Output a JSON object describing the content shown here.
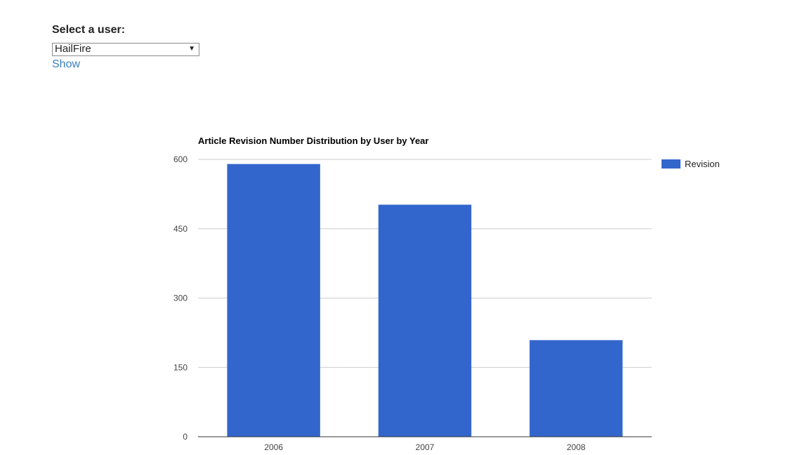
{
  "form": {
    "label": "Select a user:",
    "selected_user": "HailFire",
    "show_link": "Show",
    "arrow_icon": "▼"
  },
  "chart_data": {
    "type": "bar",
    "title": "Article Revision Number Distribution by User by Year",
    "categories": [
      "2006",
      "2007",
      "2008"
    ],
    "series": [
      {
        "name": "Revision",
        "values": [
          590,
          502,
          209
        ],
        "color": "#3366cc"
      }
    ],
    "ylim": [
      0,
      600
    ],
    "yticks": [
      0,
      150,
      300,
      450,
      600
    ],
    "xlabel": "",
    "ylabel": "",
    "grid": true,
    "legend": "right"
  }
}
